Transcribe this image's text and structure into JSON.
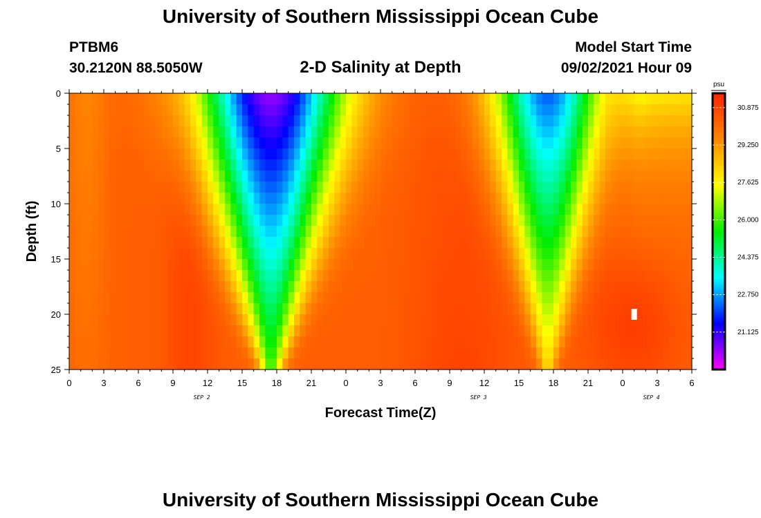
{
  "header": {
    "title": "University of Southern Mississippi Ocean Cube",
    "station_id": "PTBM6",
    "station_coords": "30.2120N  88.5050W",
    "chart_title": "2-D Salinity at Depth",
    "model_label": "Model Start Time",
    "model_time": "09/02/2021 Hour 09"
  },
  "footer": {
    "title": "University of Southern Mississippi Ocean Cube"
  },
  "chart_data": {
    "type": "heatmap",
    "title": "2-D Salinity at Depth",
    "xlabel": "Forecast Time(Z)",
    "ylabel": "Depth (ft)",
    "x_ticks": [
      "0",
      "3",
      "6",
      "9",
      "12",
      "15",
      "18",
      "21",
      "0",
      "3",
      "6",
      "9",
      "12",
      "15",
      "18",
      "21",
      "0",
      "3",
      "6"
    ],
    "x_range_hours": [
      0,
      54
    ],
    "date_labels": [
      {
        "text": "SEP 2",
        "hour": 11.5
      },
      {
        "text": "SEP 3",
        "hour": 35.5
      },
      {
        "text": "SEP 4",
        "hour": 50.5
      }
    ],
    "y_ticks": [
      "0",
      "5",
      "10",
      "15",
      "20",
      "25"
    ],
    "y_range_ft": [
      0,
      25
    ],
    "colorbar": {
      "unit": "psu",
      "range": [
        19.5,
        31.5
      ],
      "tick_values": [
        30.875,
        29.25,
        27.625,
        26.0,
        24.375,
        22.75,
        21.125
      ],
      "tick_labels": [
        "30.875",
        "29.250",
        "27.625",
        "26.000",
        "24.375",
        "22.750",
        "21.125"
      ],
      "colors": [
        "#ff00ff",
        "#0000ff",
        "#00ffff",
        "#00ee00",
        "#ffff00",
        "#ff8800",
        "#ff2200"
      ]
    },
    "marker": {
      "hour": 49,
      "depth_ft": 20
    },
    "grid": false
  }
}
